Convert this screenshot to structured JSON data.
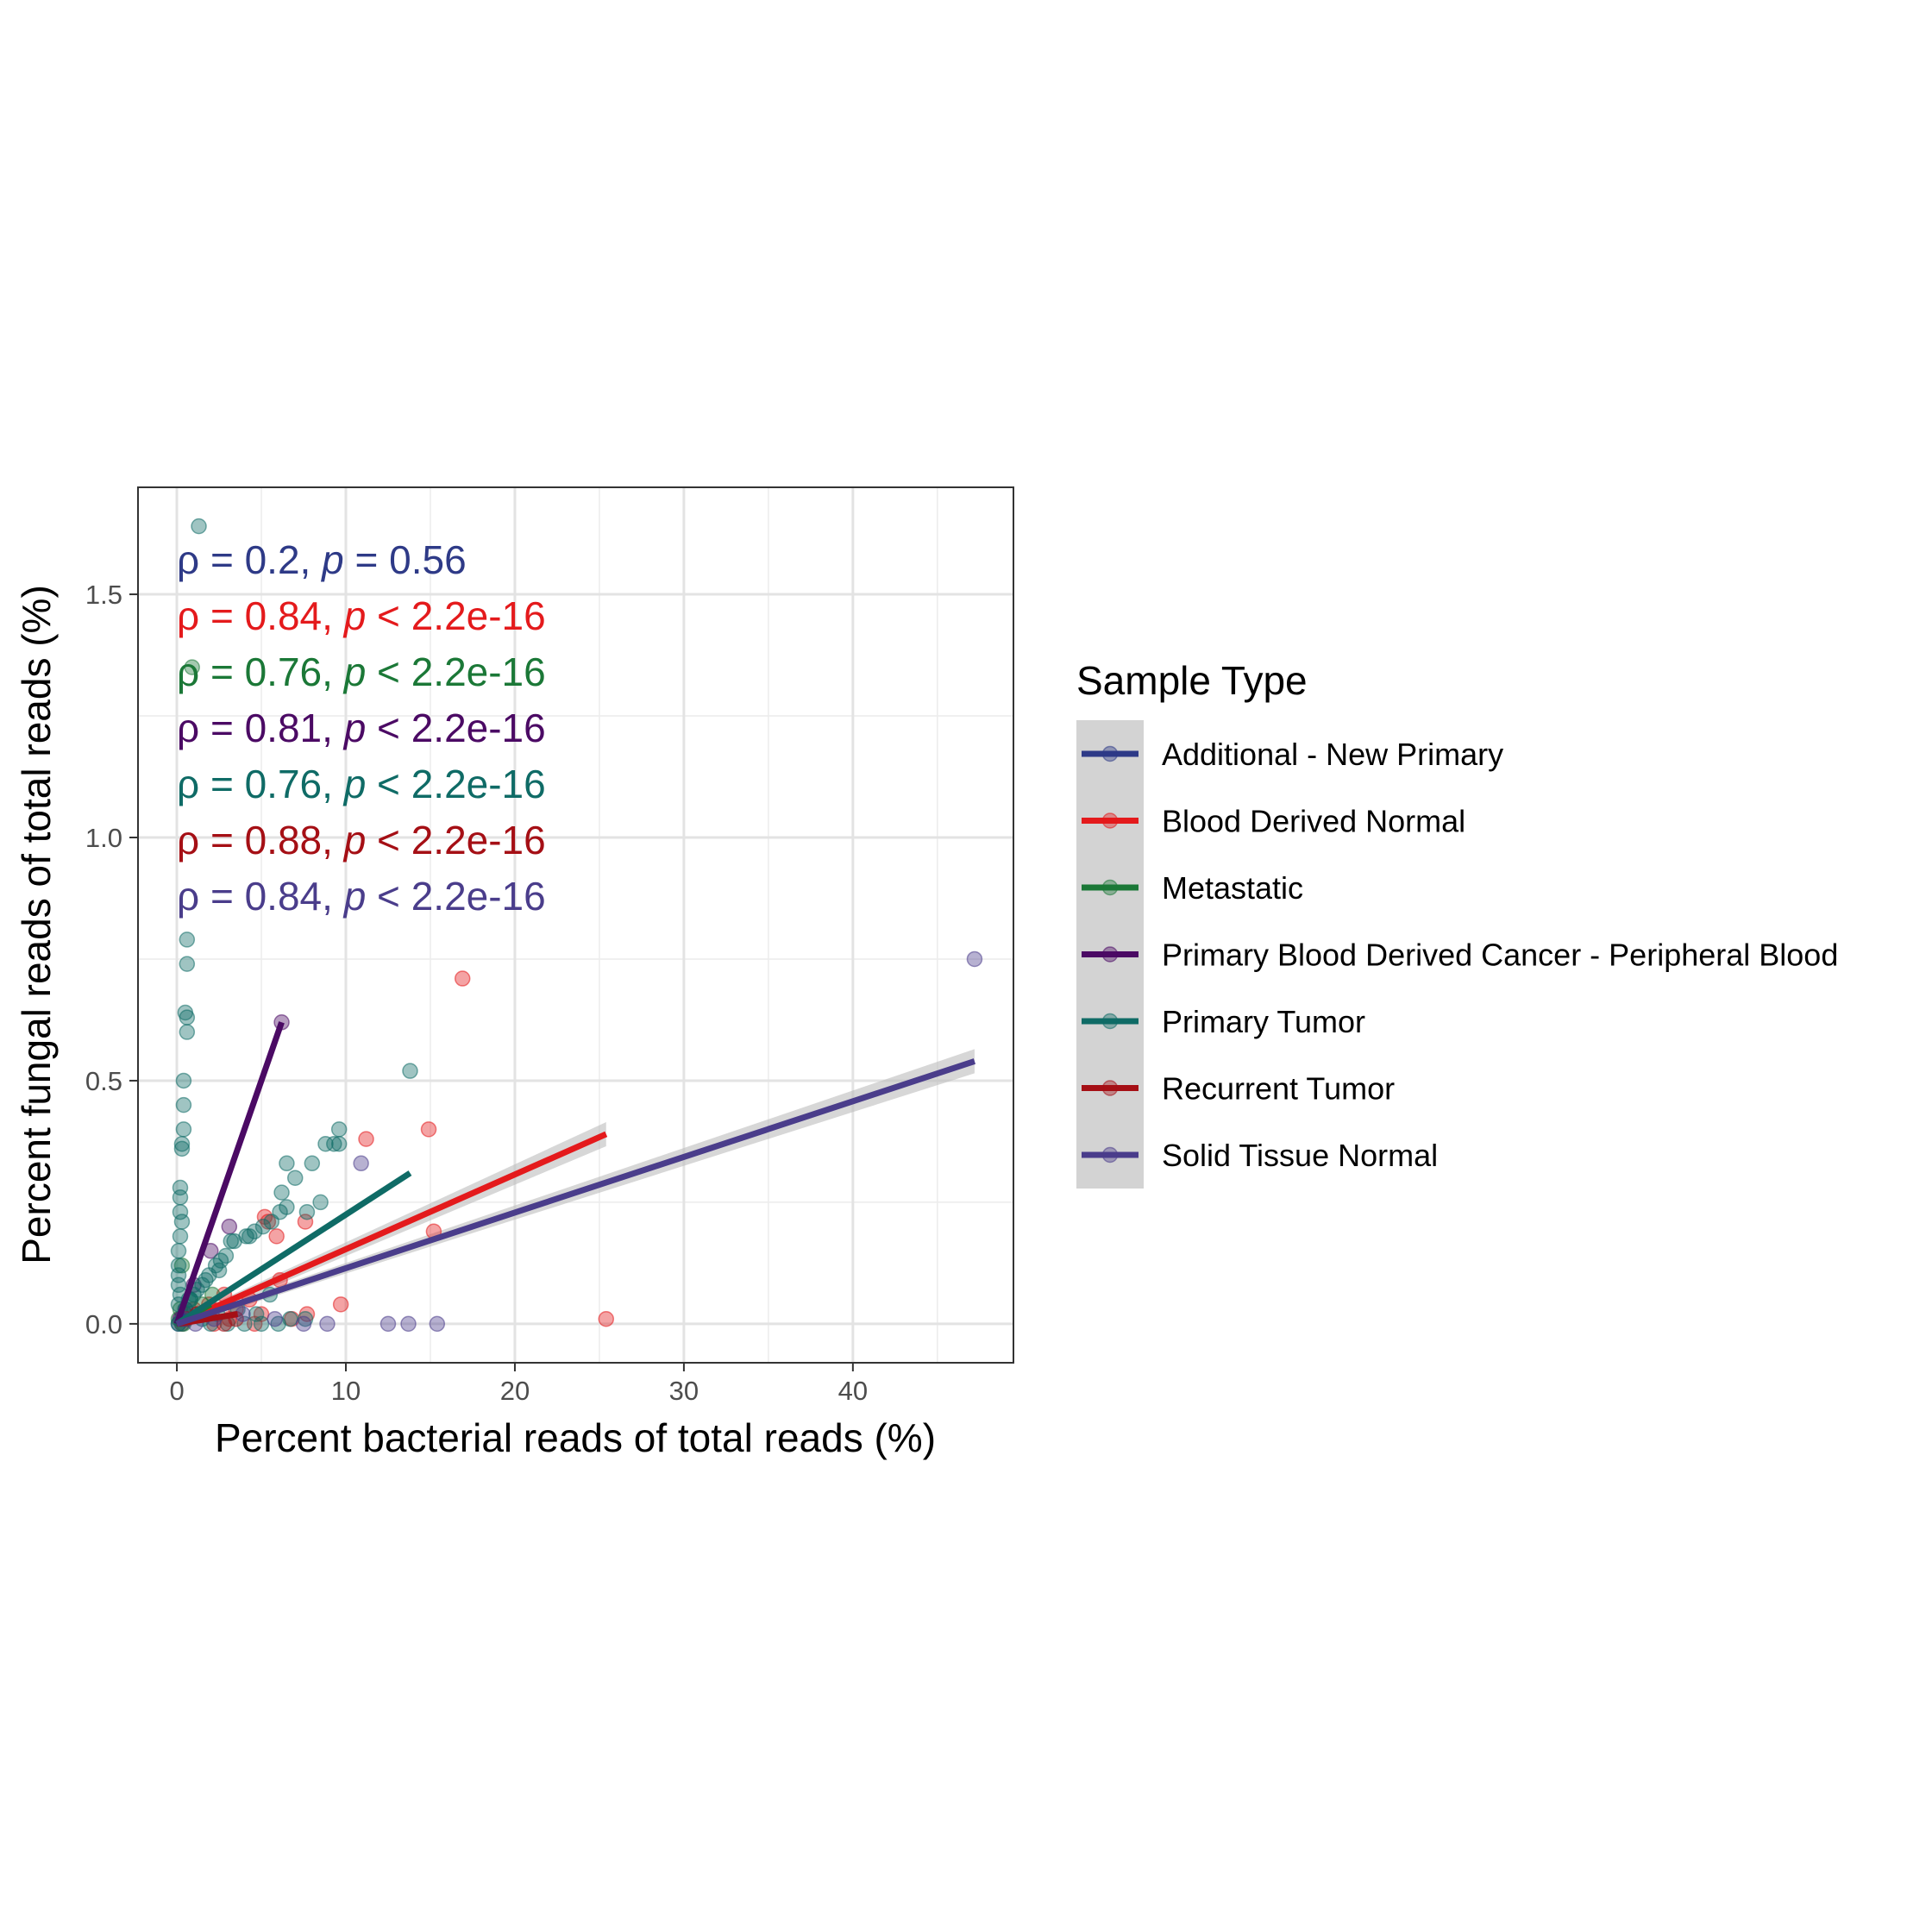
{
  "chart_data": {
    "type": "scatter",
    "xlabel": "Percent bacterial reads of total reads (%)",
    "ylabel": "Percent fungal reads of total reads (%)",
    "xlim": [
      -2.3,
      49.5
    ],
    "ylim": [
      -0.08,
      1.72
    ],
    "xticks": [
      0,
      10,
      20,
      30,
      40
    ],
    "xtick_labels": [
      "0",
      "10",
      "20",
      "30",
      "40"
    ],
    "yticks": [
      0.0,
      0.5,
      1.0,
      1.5
    ],
    "ytick_labels": [
      "0.0",
      "0.5",
      "1.0",
      "1.5"
    ],
    "grid": true,
    "legend": {
      "title": "Sample Type",
      "position": "right"
    },
    "series": [
      {
        "name": "Additional - New Primary",
        "color": "#2E3A87",
        "points": [
          [
            0.1,
            0.0
          ],
          [
            0.3,
            0.01
          ],
          [
            0.5,
            0.02
          ]
        ],
        "fit": [
          [
            0.0,
            0.0
          ],
          [
            0.5,
            0.02
          ]
        ]
      },
      {
        "name": "Blood Derived Normal",
        "color": "#E41A1C",
        "points": [
          [
            16.9,
            0.71
          ],
          [
            11.2,
            0.38
          ],
          [
            14.9,
            0.4
          ],
          [
            15.2,
            0.19
          ],
          [
            25.4,
            0.01
          ],
          [
            9.7,
            0.04
          ],
          [
            7.7,
            0.02
          ],
          [
            7.6,
            0.21
          ],
          [
            5.9,
            0.18
          ],
          [
            5.2,
            0.22
          ],
          [
            5.4,
            0.21
          ],
          [
            6.1,
            0.09
          ],
          [
            4.3,
            0.05
          ],
          [
            3.5,
            0.03
          ],
          [
            2.8,
            0.06
          ],
          [
            1.9,
            0.04
          ],
          [
            1.2,
            0.02
          ],
          [
            0.6,
            0.01
          ],
          [
            2.2,
            0.0
          ],
          [
            4.6,
            0.0
          ],
          [
            3.1,
            0.01
          ],
          [
            5.0,
            0.02
          ],
          [
            6.8,
            0.01
          ],
          [
            1.0,
            0.03
          ],
          [
            0.3,
            0.0
          ]
        ],
        "fit": [
          [
            0.0,
            0.0
          ],
          [
            25.4,
            0.39
          ]
        ]
      },
      {
        "name": "Metastatic",
        "color": "#1B7837",
        "points": [
          [
            0.9,
            1.35
          ],
          [
            0.3,
            0.12
          ],
          [
            0.8,
            0.05
          ],
          [
            0.2,
            0.03
          ],
          [
            1.5,
            0.04
          ],
          [
            0.5,
            0.02
          ],
          [
            0.1,
            0.01
          ],
          [
            2.1,
            0.06
          ],
          [
            0.4,
            0.0
          ]
        ],
        "fit": [
          [
            0.0,
            0.0
          ],
          [
            2.0,
            0.04
          ]
        ]
      },
      {
        "name": "Primary Blood Derived Cancer - Peripheral Blood",
        "color": "#4B0A64",
        "points": [
          [
            6.2,
            0.62
          ],
          [
            0.5,
            0.03
          ],
          [
            1.0,
            0.08
          ],
          [
            2.0,
            0.15
          ],
          [
            0.2,
            0.01
          ],
          [
            3.1,
            0.2
          ]
        ],
        "fit": [
          [
            0.0,
            0.0
          ],
          [
            6.2,
            0.62
          ]
        ]
      },
      {
        "name": "Primary Tumor",
        "color": "#0F6B66",
        "points": [
          [
            1.3,
            1.64
          ],
          [
            0.6,
            0.79
          ],
          [
            0.6,
            0.74
          ],
          [
            0.5,
            0.64
          ],
          [
            0.6,
            0.63
          ],
          [
            0.6,
            0.6
          ],
          [
            0.4,
            0.5
          ],
          [
            0.4,
            0.45
          ],
          [
            0.4,
            0.4
          ],
          [
            0.3,
            0.37
          ],
          [
            0.3,
            0.36
          ],
          [
            0.2,
            0.28
          ],
          [
            0.2,
            0.26
          ],
          [
            0.2,
            0.23
          ],
          [
            0.3,
            0.21
          ],
          [
            0.2,
            0.18
          ],
          [
            0.1,
            0.15
          ],
          [
            0.1,
            0.12
          ],
          [
            0.1,
            0.1
          ],
          [
            0.1,
            0.08
          ],
          [
            0.2,
            0.06
          ],
          [
            0.1,
            0.04
          ],
          [
            13.8,
            0.52
          ],
          [
            9.6,
            0.4
          ],
          [
            9.6,
            0.37
          ],
          [
            8.8,
            0.37
          ],
          [
            9.3,
            0.37
          ],
          [
            6.5,
            0.33
          ],
          [
            8.0,
            0.33
          ],
          [
            7.0,
            0.3
          ],
          [
            6.2,
            0.27
          ],
          [
            8.5,
            0.25
          ],
          [
            6.5,
            0.24
          ],
          [
            7.7,
            0.23
          ],
          [
            6.1,
            0.23
          ],
          [
            5.6,
            0.21
          ],
          [
            5.1,
            0.2
          ],
          [
            4.6,
            0.19
          ],
          [
            4.1,
            0.18
          ],
          [
            4.3,
            0.18
          ],
          [
            3.2,
            0.17
          ],
          [
            3.4,
            0.17
          ],
          [
            2.9,
            0.14
          ],
          [
            2.6,
            0.13
          ],
          [
            2.3,
            0.12
          ],
          [
            2.5,
            0.11
          ],
          [
            1.9,
            0.1
          ],
          [
            1.7,
            0.09
          ],
          [
            1.5,
            0.08
          ],
          [
            1.2,
            0.07
          ],
          [
            1.0,
            0.06
          ],
          [
            0.8,
            0.05
          ],
          [
            0.7,
            0.05
          ],
          [
            0.5,
            0.03
          ],
          [
            0.9,
            0.02
          ],
          [
            1.5,
            0.01
          ],
          [
            2.0,
            0.0
          ],
          [
            3.0,
            0.0
          ],
          [
            4.0,
            0.0
          ],
          [
            5.0,
            0.0
          ],
          [
            6.0,
            0.0
          ],
          [
            6.7,
            0.01
          ],
          [
            7.6,
            0.01
          ],
          [
            5.5,
            0.06
          ],
          [
            4.7,
            0.02
          ],
          [
            3.6,
            0.03
          ],
          [
            2.4,
            0.02
          ],
          [
            0.1,
            0.0
          ],
          [
            0.3,
            0.0
          ],
          [
            0.5,
            0.01
          ]
        ],
        "fit": [
          [
            0.0,
            0.0
          ],
          [
            13.8,
            0.31
          ]
        ]
      },
      {
        "name": "Recurrent Tumor",
        "color": "#A50F15",
        "points": [
          [
            0.5,
            0.01
          ],
          [
            1.2,
            0.02
          ],
          [
            2.0,
            0.03
          ],
          [
            2.8,
            0.0
          ],
          [
            3.5,
            0.01
          ]
        ],
        "fit": [
          [
            0.0,
            0.0
          ],
          [
            3.6,
            0.02
          ]
        ]
      },
      {
        "name": "Solid Tissue Normal",
        "color": "#4A3D8B",
        "points": [
          [
            47.2,
            0.75
          ],
          [
            10.9,
            0.33
          ],
          [
            12.5,
            0.0
          ],
          [
            13.7,
            0.0
          ],
          [
            15.4,
            0.0
          ],
          [
            8.9,
            0.0
          ],
          [
            7.5,
            0.0
          ],
          [
            5.8,
            0.01
          ],
          [
            3.9,
            0.02
          ],
          [
            2.2,
            0.01
          ],
          [
            1.1,
            0.0
          ],
          [
            0.4,
            0.01
          ]
        ],
        "fit": [
          [
            0.0,
            0.0
          ],
          [
            47.2,
            0.54
          ]
        ]
      }
    ],
    "annotations": [
      {
        "rho": "0.2",
        "p": "= 0.56",
        "color": "#2E3A87"
      },
      {
        "rho": "0.84",
        "p": "< 2.2e-16",
        "color": "#E41A1C"
      },
      {
        "rho": "0.76",
        "p": "< 2.2e-16",
        "color": "#1B7837"
      },
      {
        "rho": "0.81",
        "p": "< 2.2e-16",
        "color": "#4B0A64"
      },
      {
        "rho": "0.76",
        "p": "< 2.2e-16",
        "color": "#0F6B66"
      },
      {
        "rho": "0.88",
        "p": "< 2.2e-16",
        "color": "#A50F15"
      },
      {
        "rho": "0.84",
        "p": "< 2.2e-16",
        "color": "#4A3D8B"
      }
    ]
  }
}
